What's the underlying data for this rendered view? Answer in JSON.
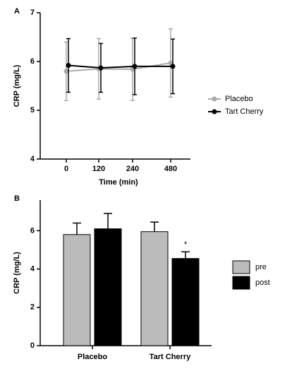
{
  "chart_data": [
    {
      "type": "line",
      "panel": "A",
      "xlabel": "Time (min)",
      "ylabel": "CRP (mg/L)",
      "categories": [
        "0",
        "120",
        "240",
        "480"
      ],
      "series": [
        {
          "name": "Placebo",
          "color": "#aaaaaa",
          "values": [
            5.8,
            5.85,
            5.84,
            5.97
          ],
          "errors": [
            0.6,
            0.62,
            0.64,
            0.7
          ]
        },
        {
          "name": "Tart Cherry",
          "color": "#000000",
          "values": [
            5.92,
            5.87,
            5.9,
            5.9
          ],
          "errors": [
            0.55,
            0.5,
            0.58,
            0.56
          ]
        }
      ],
      "ylim": [
        4,
        7
      ],
      "yticks": [
        4,
        5,
        6,
        7
      ],
      "legend": "right"
    },
    {
      "type": "bar",
      "panel": "B",
      "ylabel": "CRP (mg/L)",
      "categories": [
        "Placebo",
        "Tart Cherry"
      ],
      "series": [
        {
          "name": "pre",
          "color": "#bbbbbb",
          "values": [
            5.8,
            5.95
          ],
          "errors": [
            0.6,
            0.5
          ]
        },
        {
          "name": "post",
          "color": "#000000",
          "values": [
            6.1,
            4.55
          ],
          "errors": [
            0.8,
            0.35
          ]
        }
      ],
      "annotation": "*",
      "ylim": [
        0,
        7.6
      ],
      "yticks": [
        0,
        2,
        4,
        6
      ],
      "legend": "right"
    }
  ]
}
